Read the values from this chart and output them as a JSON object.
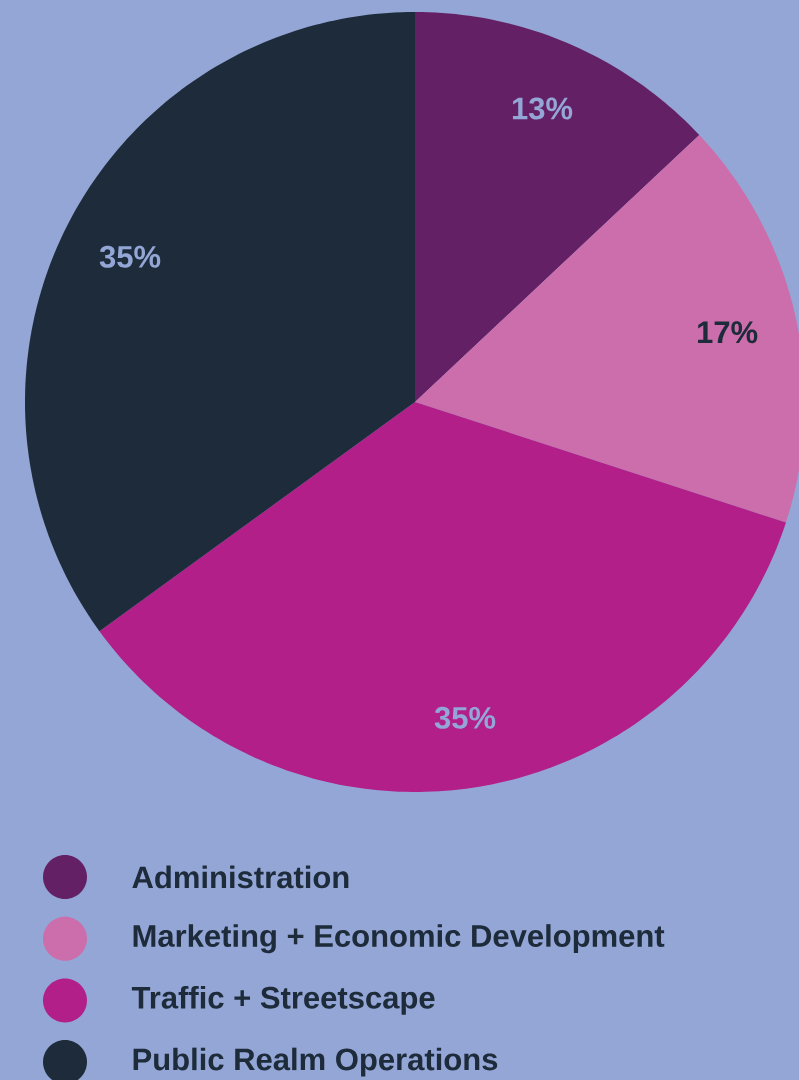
{
  "chart_data": {
    "type": "pie",
    "categories": [
      "Administration",
      "Marketing + Economic Development",
      "Traffic + Streetscape",
      "Public Realm Operations"
    ],
    "values": [
      13,
      17,
      35,
      35
    ],
    "colors": [
      "#642064",
      "#cc6eab",
      "#b31f88",
      "#1d2b3a"
    ],
    "value_labels": [
      "13%",
      "17%",
      "35%",
      "35%"
    ],
    "legend": "bottom"
  }
}
